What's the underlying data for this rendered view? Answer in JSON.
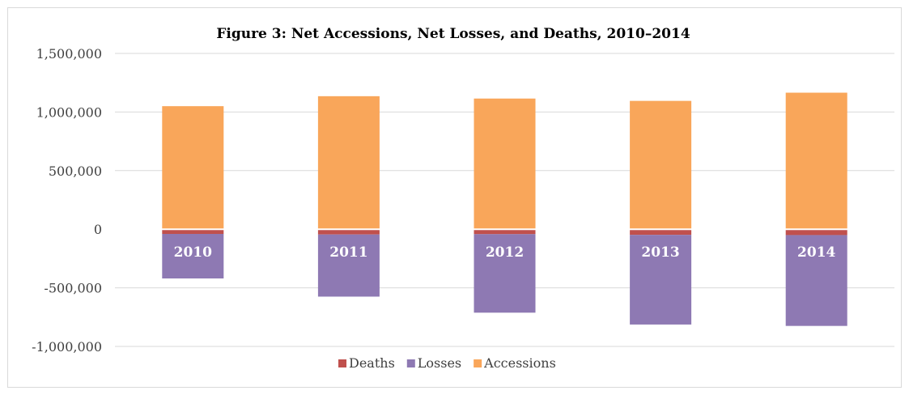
{
  "chart_data": {
    "type": "bar",
    "stacked": true,
    "title": "Figure 3: Net Accessions, Net Losses, and Deaths, 2010–2014",
    "xlabel": "",
    "ylabel": "",
    "categories": [
      "2010",
      "2011",
      "2012",
      "2013",
      "2014"
    ],
    "series": [
      {
        "name": "Deaths",
        "color": "#c0504d",
        "values": [
          -40000,
          -45000,
          -42000,
          -48000,
          -50000
        ]
      },
      {
        "name": "Losses",
        "color": "#8e79b3",
        "values": [
          -380000,
          -530000,
          -670000,
          -765000,
          -775000
        ]
      },
      {
        "name": "Accessions",
        "color": "#f9a65a",
        "values": [
          1050000,
          1135000,
          1115000,
          1095000,
          1165000
        ]
      }
    ],
    "ylim": [
      -1000000,
      1500000
    ],
    "yticks": [
      1500000,
      1000000,
      500000,
      0,
      -500000,
      -1000000
    ],
    "ytick_labels": [
      "1,500,000",
      "1,000,000",
      "500,000",
      "0",
      "-500,000",
      "-1,000,000"
    ],
    "grid": true,
    "legend_position": "bottom"
  }
}
